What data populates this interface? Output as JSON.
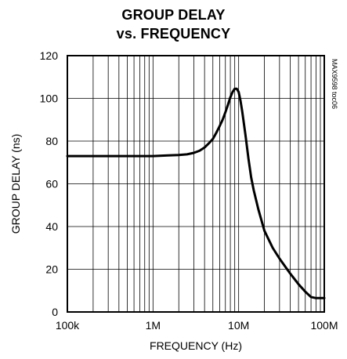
{
  "chart_data": {
    "type": "line",
    "title_line1": "GROUP DELAY",
    "title_line2": "vs. FREQUENCY",
    "xlabel": "FREQUENCY (Hz)",
    "ylabel": "GROUP DELAY (ns)",
    "note": "MAX9598 toc06",
    "x_scale": "log",
    "xlim": [
      100000,
      100000000
    ],
    "ylim": [
      0,
      120
    ],
    "grid": true,
    "x_ticks": [
      {
        "value": 100000,
        "label": "100k"
      },
      {
        "value": 1000000,
        "label": "1M"
      },
      {
        "value": 10000000,
        "label": "10M"
      },
      {
        "value": 100000000,
        "label": "100M"
      }
    ],
    "y_ticks": [
      {
        "value": 0,
        "label": "0"
      },
      {
        "value": 20,
        "label": "20"
      },
      {
        "value": 40,
        "label": "40"
      },
      {
        "value": 60,
        "label": "60"
      },
      {
        "value": 80,
        "label": "80"
      },
      {
        "value": 100,
        "label": "100"
      },
      {
        "value": 120,
        "label": "120"
      }
    ],
    "series": [
      {
        "x": [
          100000,
          200000,
          500000,
          1000000,
          1500000,
          2000000,
          2500000,
          3000000,
          3500000,
          4000000,
          4500000,
          5000000,
          5500000,
          6000000,
          6500000,
          7000000,
          7500000,
          8000000,
          8500000,
          9000000,
          9500000,
          10000000,
          10500000,
          11000000,
          12000000,
          13000000,
          14000000,
          15000000,
          17000000,
          20000000,
          25000000,
          30000000,
          40000000,
          50000000,
          60000000,
          70000000,
          80000000,
          90000000,
          100000000
        ],
        "y": [
          73,
          73,
          73,
          73,
          73.3,
          73.5,
          73.8,
          74.5,
          75.5,
          77,
          79,
          81,
          84,
          87,
          90,
          93.5,
          97,
          100.5,
          103,
          104.5,
          104.5,
          103,
          99,
          94,
          83,
          72,
          63,
          57,
          48,
          38,
          30,
          25,
          18,
          13,
          9.5,
          7,
          6.5,
          6.5,
          6.5
        ]
      }
    ]
  }
}
